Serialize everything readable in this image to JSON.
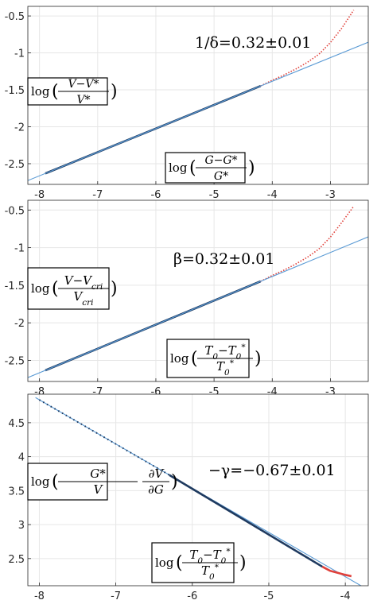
{
  "chart_data": [
    {
      "type": "line",
      "title": "",
      "xlim": [
        -8.2,
        -2.35
      ],
      "ylim": [
        -2.78,
        -0.37
      ],
      "xticks": [
        -8,
        -7,
        -6,
        -5,
        -4,
        -3
      ],
      "yticks": [
        -2.5,
        -2,
        -1.5,
        -1,
        -0.5
      ],
      "xtick_labels": [
        "-8",
        "-7",
        "-6",
        "-5",
        "-4",
        "-3"
      ],
      "ytick_labels": [
        "-2.5",
        "-2",
        "-1.5",
        "-1",
        "-0.5"
      ],
      "grid": true,
      "ylabel": {
        "pre": "log",
        "num": "V−V*",
        "den": "V*"
      },
      "xlabel": {
        "pre": "log",
        "num": "G−G*",
        "den": "G*"
      },
      "annotation": "1/δ=0.32±0.01",
      "series": [
        {
          "style": "data",
          "color": "#1f3a5f",
          "x": [
            -7.9,
            -4.2
          ],
          "y": [
            -2.632,
            -1.448
          ]
        },
        {
          "style": "data-dev",
          "color": "#e0403a",
          "x": [
            -4.2,
            -4.0,
            -3.8,
            -3.6,
            -3.4,
            -3.2,
            -3.0,
            -2.8,
            -2.6
          ],
          "y": [
            -1.448,
            -1.37,
            -1.3,
            -1.22,
            -1.13,
            -1.02,
            -0.86,
            -0.66,
            -0.42
          ]
        },
        {
          "style": "fit",
          "color": "#5b9bd5",
          "x": [
            -8.2,
            -2.35
          ],
          "y": [
            -2.728,
            -0.856
          ]
        }
      ]
    },
    {
      "type": "line",
      "title": "",
      "xlim": [
        -8.2,
        -2.35
      ],
      "ylim": [
        -2.78,
        -0.37
      ],
      "xticks": [
        -8,
        -7,
        -6,
        -5,
        -4,
        -3
      ],
      "yticks": [
        -2.5,
        -2,
        -1.5,
        -1,
        -0.5
      ],
      "xtick_labels": [
        "-8",
        "-7",
        "-6",
        "-5",
        "-4",
        "-3"
      ],
      "ytick_labels": [
        "-2.5",
        "-2",
        "-1.5",
        "-1",
        "-0.5"
      ],
      "grid": true,
      "ylabel": {
        "pre": "log",
        "num": "V−V",
        "num_sub": "cri",
        "den": "V",
        "den_sub": "cri"
      },
      "xlabel": {
        "pre": "log",
        "num": "T",
        "num_sub": "0",
        "num2": "−T",
        "num2_sub": "0",
        "num2_sup": "*",
        "den": "T",
        "den_sub": "0",
        "den_sup": "*"
      },
      "annotation": "β=0.32±0.01",
      "series": [
        {
          "style": "data",
          "color": "#1f3a5f",
          "x": [
            -7.9,
            -4.2
          ],
          "y": [
            -2.632,
            -1.448
          ]
        },
        {
          "style": "data-dev",
          "color": "#e0403a",
          "x": [
            -4.2,
            -4.0,
            -3.8,
            -3.6,
            -3.4,
            -3.2,
            -3.0,
            -2.8,
            -2.6
          ],
          "y": [
            -1.448,
            -1.37,
            -1.3,
            -1.22,
            -1.13,
            -1.02,
            -0.86,
            -0.66,
            -0.45
          ]
        },
        {
          "style": "fit",
          "color": "#5b9bd5",
          "x": [
            -8.2,
            -2.35
          ],
          "y": [
            -2.728,
            -0.856
          ]
        }
      ]
    },
    {
      "type": "line",
      "title": "",
      "xlim": [
        -8.15,
        -3.7
      ],
      "ylim": [
        2.1,
        4.92
      ],
      "xticks": [
        -8,
        -7,
        -6,
        -5,
        -4
      ],
      "yticks": [
        2.5,
        3,
        3.5,
        4,
        4.5
      ],
      "xtick_labels": [
        "-8",
        "-7",
        "-6",
        "-5",
        "-4"
      ],
      "ytick_labels": [
        "2.5",
        "3",
        "3.5",
        "4",
        "4.5"
      ],
      "grid": true,
      "ylabel": {
        "pre": "log",
        "num": "G*",
        "den": "V",
        "mid_num": "∂V",
        "mid_den": "∂G"
      },
      "xlabel": {
        "pre": "log",
        "num": "T",
        "num_sub": "0",
        "num2": "−T",
        "num2_sub": "0",
        "num2_sup": "*",
        "den": "T",
        "den_sub": "0",
        "den_sup": "*"
      },
      "annotation": "−γ=−0.67±0.01",
      "series": [
        {
          "style": "fit",
          "color": "#5b9bd5",
          "x": [
            -8.05,
            -3.78
          ],
          "y": [
            4.87,
            2.09
          ]
        },
        {
          "style": "data-sparse",
          "color": "#1f3a5f",
          "x": [
            -8.0,
            -6.3
          ],
          "y": [
            4.837,
            3.73
          ]
        },
        {
          "style": "data",
          "color": "#1f3a5f",
          "x": [
            -6.3,
            -4.3
          ],
          "y": [
            3.73,
            2.38
          ]
        },
        {
          "style": "data-dev",
          "color": "#e0403a",
          "x": [
            -4.3,
            -4.2,
            -4.1,
            -4.0,
            -3.92
          ],
          "y": [
            2.38,
            2.32,
            2.29,
            2.26,
            2.24
          ]
        }
      ]
    }
  ]
}
